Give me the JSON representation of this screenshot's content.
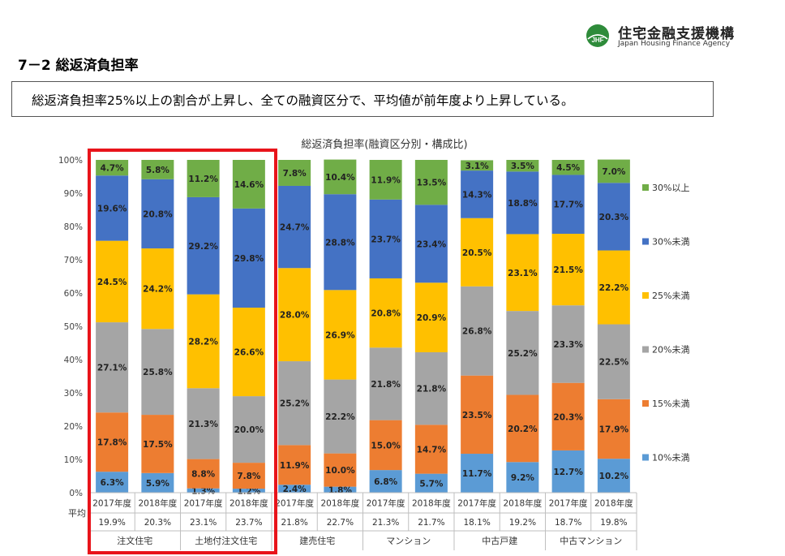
{
  "header": {
    "logo_mark": "JHF",
    "org_name": "住宅金融支援機構",
    "org_name_en": "Japan Housing Finance Agency"
  },
  "section_title": "7－2  総返済負担率",
  "summary": "総返済負担率25%以上の割合が上昇し、全ての融資区分で、平均値が前年度より上昇している。",
  "colors": {
    "10%未満": "#5b9bd5",
    "15%未満": "#ed7d31",
    "20%未満": "#a5a5a5",
    "25%未満": "#ffc000",
    "30%未満": "#4472c4",
    "30%以上": "#70ad47",
    "highlight": "#e8141b"
  },
  "chart_data": {
    "type": "bar",
    "stacked": true,
    "title": "総返済負担率(融資区分別・構成比)",
    "ylim": [
      0,
      100
    ],
    "yticks": [
      "0%",
      "10%",
      "20%",
      "30%",
      "40%",
      "50%",
      "60%",
      "70%",
      "80%",
      "90%",
      "100%"
    ],
    "average_label": "平均",
    "categories": [
      "2017年度",
      "2018年度",
      "2017年度",
      "2018年度",
      "2017年度",
      "2018年度",
      "2017年度",
      "2018年度",
      "2017年度",
      "2018年度",
      "2017年度",
      "2018年度"
    ],
    "averages": [
      "19.9%",
      "20.3%",
      "23.1%",
      "23.7%",
      "21.8%",
      "22.7%",
      "21.3%",
      "21.7%",
      "18.1%",
      "19.2%",
      "18.7%",
      "19.8%"
    ],
    "groups": [
      "注文住宅",
      "土地付注文住宅",
      "建売住宅",
      "マンション",
      "中古戸建",
      "中古マンション"
    ],
    "legend_position": "right",
    "series": [
      {
        "name": "10%未満",
        "values": [
          6.3,
          5.9,
          1.3,
          1.2,
          2.4,
          1.8,
          6.8,
          5.7,
          11.7,
          9.2,
          12.7,
          10.2
        ]
      },
      {
        "name": "15%未満",
        "values": [
          17.8,
          17.5,
          8.8,
          7.8,
          11.9,
          10.0,
          15.0,
          14.7,
          23.5,
          20.2,
          20.3,
          17.9
        ]
      },
      {
        "name": "20%未満",
        "values": [
          27.1,
          25.8,
          21.3,
          20.0,
          25.2,
          22.2,
          21.8,
          21.8,
          26.8,
          25.2,
          23.3,
          22.5
        ]
      },
      {
        "name": "25%未満",
        "values": [
          24.5,
          24.2,
          28.2,
          26.6,
          28.0,
          26.9,
          20.8,
          20.9,
          20.5,
          23.1,
          21.5,
          22.2
        ]
      },
      {
        "name": "30%未満",
        "values": [
          19.6,
          20.8,
          29.2,
          29.8,
          24.7,
          28.8,
          23.7,
          23.4,
          14.3,
          18.8,
          17.7,
          20.3
        ]
      },
      {
        "name": "30%以上",
        "values": [
          4.7,
          5.8,
          11.2,
          14.6,
          7.8,
          10.4,
          11.9,
          13.5,
          3.1,
          3.5,
          4.5,
          7.0
        ]
      }
    ]
  }
}
